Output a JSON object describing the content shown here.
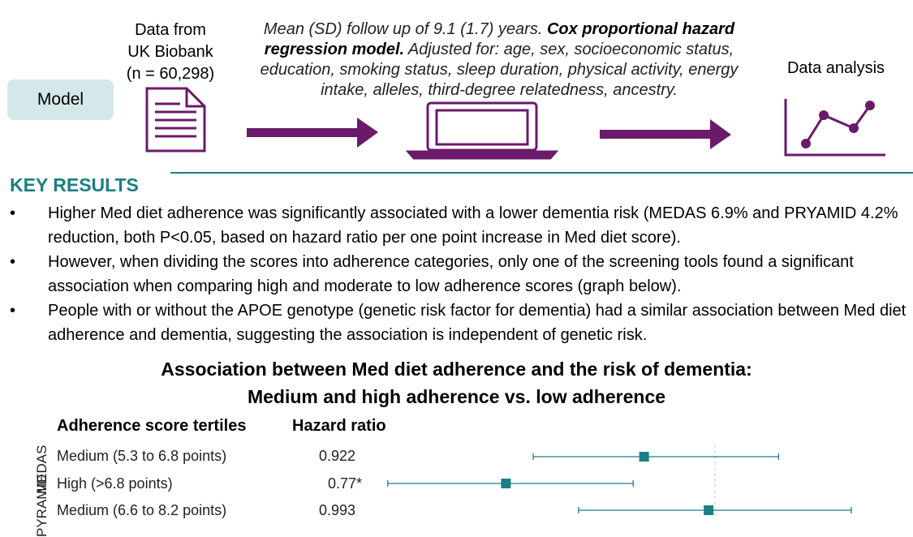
{
  "model_label": "Model",
  "source": {
    "line1": "Data from",
    "line2": "UK Biobank",
    "line3": "(n = 60,298)"
  },
  "method": {
    "part1": "Mean (SD) follow up of 9.1 (1.7) years.  ",
    "part2_bold": "Cox proportional hazard regression model.",
    "part3": " Adjusted for: age, sex, socioeconomic status, education, smoking status, sleep duration, physical activity, energy intake, alleles, third-degree relatedness, ancestry."
  },
  "analysis_label": "Data analysis",
  "icons": [
    "document-icon",
    "arrow-right-icon",
    "laptop-icon",
    "line-chart-icon"
  ],
  "key_results": {
    "title": "KEY RESULTS",
    "bullet_char": "•",
    "items": [
      "Higher Med diet adherence was significantly associated with a lower dementia risk (MEDAS 6.9% and PRYAMID 4.2% reduction, both P<0.05, based on hazard ratio per one point increase in Med diet score).",
      "However, when dividing the scores into adherence categories, only one of the screening tools found a significant association when comparing high and moderate to low adherence scores (graph below).",
      "People with or without the APOE genotype (genetic risk factor for dementia) had a similar association between Med diet adherence and dementia, suggesting the association is independent of genetic risk."
    ]
  },
  "chart_title": {
    "line1": "Association between Med diet adherence and the risk of dementia:",
    "line2": "Medium and high adherence vs. low adherence"
  },
  "colors": {
    "teal": "#1a7f86",
    "purple": "#6b1a6b",
    "badge": "#d4e8e9"
  },
  "chart_data": {
    "type": "forest",
    "column_headers": [
      "Adherence score tertiles",
      "Hazard ratio"
    ],
    "groups": [
      "MEDAS",
      "PYRAMID"
    ],
    "rows": [
      {
        "group": "MEDAS",
        "label": "Medium (5.3 to 6.8 points)",
        "hr_text": "0.922",
        "hr": 0.922,
        "lower": 0.8,
        "upper": 1.07
      },
      {
        "group": "MEDAS",
        "label": "High (>6.8 points)",
        "hr_text": "0.77*",
        "hr": 0.77,
        "lower": 0.64,
        "upper": 0.91
      },
      {
        "group": "PYRAMID",
        "label": "Medium (6.6 to 8.2 points)",
        "hr_text": "0.993",
        "hr": 0.993,
        "lower": 0.85,
        "upper": 1.15
      }
    ],
    "reference_line": 1.0
  }
}
